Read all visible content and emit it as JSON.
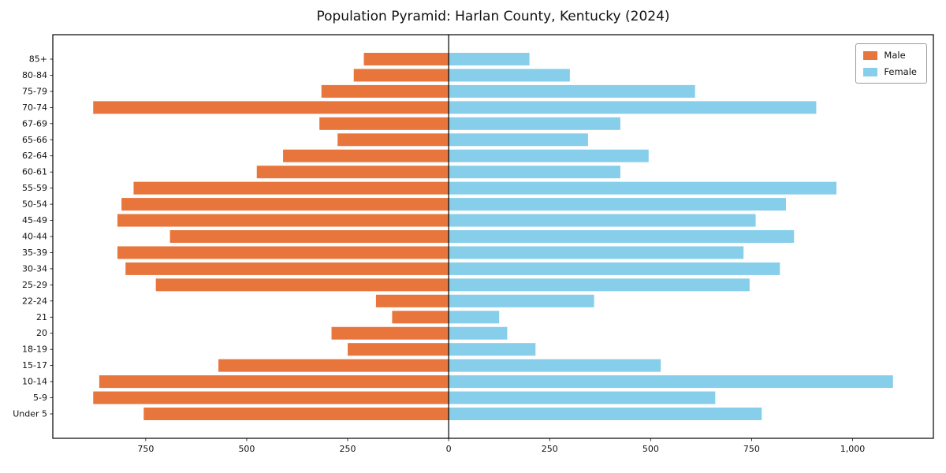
{
  "chart_data": {
    "type": "bar",
    "variant": "population-pyramid",
    "title": "Population Pyramid: Harlan County, Kentucky (2024)",
    "xlabel": "",
    "ylabel": "",
    "grid": false,
    "legend_position": "upper right",
    "categories": [
      "85+",
      "80-84",
      "75-79",
      "70-74",
      "67-69",
      "65-66",
      "62-64",
      "60-61",
      "55-59",
      "50-54",
      "45-49",
      "40-44",
      "35-39",
      "30-34",
      "25-29",
      "22-24",
      "21",
      "20",
      "18-19",
      "15-17",
      "10-14",
      "5-9",
      "Under 5"
    ],
    "series": [
      {
        "name": "Male",
        "color": "#e8763c",
        "direction": "left",
        "values": [
          210,
          235,
          315,
          880,
          320,
          275,
          410,
          475,
          780,
          810,
          820,
          690,
          820,
          800,
          725,
          180,
          140,
          290,
          250,
          570,
          865,
          880,
          755
        ]
      },
      {
        "name": "Female",
        "color": "#87ceeb",
        "direction": "right",
        "values": [
          200,
          300,
          610,
          910,
          425,
          345,
          495,
          425,
          960,
          835,
          760,
          855,
          730,
          820,
          745,
          360,
          125,
          145,
          215,
          525,
          1100,
          660,
          775
        ]
      }
    ],
    "x_ticks": [
      -750,
      -500,
      -250,
      0,
      250,
      500,
      750,
      1000
    ],
    "x_tick_labels": [
      "750",
      "500",
      "250",
      "0",
      "250",
      "500",
      "750",
      "1,000"
    ],
    "xlim": [
      -980,
      1200
    ],
    "axis_color": "#000000",
    "text_color": "#111111"
  }
}
